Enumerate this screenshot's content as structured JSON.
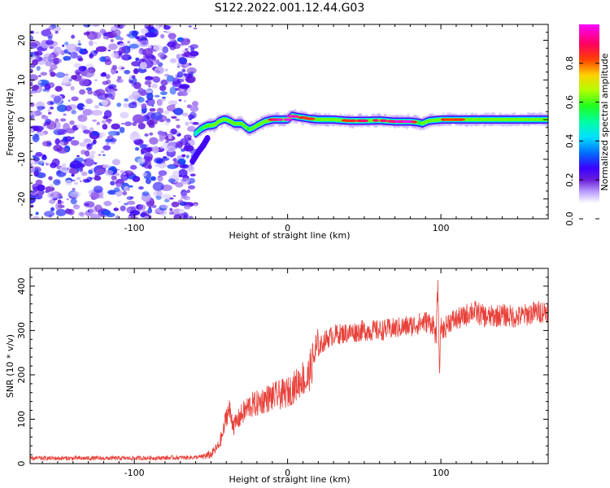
{
  "title": "S122.2022.001.12.44.G03",
  "chart_data": [
    {
      "type": "heatmap",
      "xlabel": "Height of straight line (km)",
      "ylabel": "Frequency (Hz)",
      "xlim": [
        -168,
        170
      ],
      "ylim": [
        -25,
        24
      ],
      "xticks": [
        -100,
        0,
        100
      ],
      "yticks": [
        -20,
        -10,
        0,
        10,
        20
      ],
      "noise_region": {
        "x": [
          -168,
          -60
        ],
        "y": [
          -25,
          24
        ]
      },
      "signal_ridge": {
        "x": [
          -60,
          -57,
          -55,
          -52,
          -50,
          -47,
          -45,
          -42,
          -40,
          -37,
          -35,
          -30,
          -27,
          -25,
          -22,
          -20,
          -15,
          -10,
          -5,
          0,
          3,
          5,
          10,
          15,
          20,
          30,
          40,
          50,
          60,
          70,
          80,
          85,
          88,
          92,
          100,
          110,
          120,
          130,
          140,
          150,
          160,
          170
        ],
        "y": [
          -3.5,
          -2.5,
          -2.0,
          -1.5,
          -1.5,
          -1.2,
          -0.5,
          0.0,
          0.0,
          -0.5,
          -1.0,
          -1.0,
          -2.0,
          -2.5,
          -2.0,
          -1.5,
          -0.5,
          0.0,
          0.0,
          0.0,
          1.0,
          0.8,
          0.5,
          0.2,
          0.0,
          0.0,
          -0.3,
          -0.3,
          -0.2,
          -0.5,
          -0.5,
          -0.7,
          -1.0,
          -0.3,
          0.0,
          0.0,
          0.0,
          0.0,
          0.0,
          0.0,
          0.0,
          0.0
        ],
        "amplitude": [
          0.5,
          0.55,
          0.6,
          0.65,
          0.65,
          0.7,
          0.7,
          0.75,
          0.75,
          0.7,
          0.7,
          0.7,
          0.65,
          0.6,
          0.65,
          0.7,
          0.8,
          0.85,
          0.9,
          0.95,
          0.95,
          0.9,
          0.85,
          0.8,
          0.75,
          0.75,
          0.8,
          0.85,
          0.85,
          0.9,
          0.95,
          0.7,
          0.6,
          0.7,
          0.8,
          0.8,
          0.75,
          0.75,
          0.7,
          0.7,
          0.7,
          0.7
        ]
      },
      "lower_branch": {
        "x": [
          -62,
          -58,
          -55,
          -52
        ],
        "y": [
          -10.5,
          -8.0,
          -6.5,
          -4.5
        ]
      },
      "colorbar": {
        "label": "Normalized spectral amplitude",
        "range": [
          0.0,
          1.0
        ],
        "ticks": [
          0.0,
          0.2,
          0.4,
          0.6,
          0.8
        ],
        "tick_labels": [
          "0.0",
          "0.2",
          "0.4",
          "0.6",
          "0.8"
        ],
        "colors": [
          "#ffffff",
          "#ffffff",
          "#b89cff",
          "#6a1fd8",
          "#3a00ff",
          "#0070ff",
          "#00e0ff",
          "#00ff70",
          "#8aff00",
          "#ffd000",
          "#ff4000",
          "#ff0080",
          "#ff00ff"
        ]
      }
    },
    {
      "type": "line",
      "xlabel": "Height of straight line (km)",
      "ylabel": "SNR (10 * v/v)",
      "xlim": [
        -168,
        170
      ],
      "ylim": [
        0,
        440
      ],
      "xticks": [
        -100,
        0,
        100
      ],
      "yticks": [
        0,
        100,
        200,
        300,
        400
      ],
      "color": "#e8413a",
      "series": [
        {
          "x": [
            -168,
            -140,
            -110,
            -80,
            -60,
            -55,
            -50,
            -45,
            -42,
            -40,
            -38,
            -35,
            -30,
            -25,
            -20,
            -15,
            -10,
            -5,
            0,
            5,
            10,
            12,
            15,
            18,
            20,
            25,
            30,
            40,
            50,
            60,
            70,
            80,
            90,
            95,
            97,
            98,
            99,
            100,
            102,
            105,
            110,
            115,
            120,
            130,
            140,
            150,
            160,
            170
          ],
          "y": [
            12,
            12,
            12,
            13,
            14,
            16,
            20,
            40,
            70,
            110,
            120,
            85,
            110,
            130,
            135,
            145,
            150,
            155,
            160,
            175,
            195,
            180,
            215,
            250,
            260,
            280,
            290,
            295,
            300,
            300,
            305,
            310,
            320,
            315,
            280,
            420,
            200,
            310,
            300,
            320,
            325,
            330,
            345,
            330,
            335,
            330,
            340,
            345
          ]
        }
      ]
    }
  ]
}
